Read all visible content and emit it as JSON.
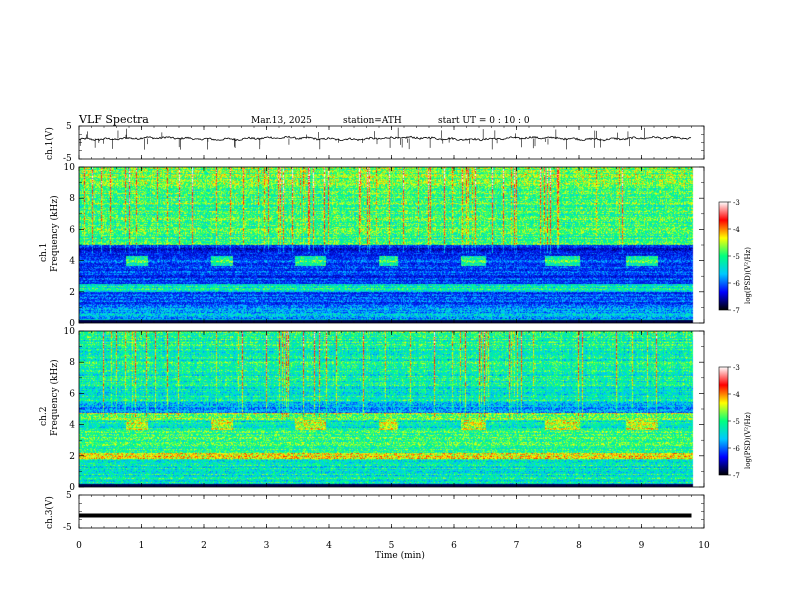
{
  "header": {
    "title": "VLF  Spectra",
    "date": "Mar.13, 2025",
    "station": "station=ATH",
    "start": "start  UT  =    0 : 10 : 0"
  },
  "chart_data": [
    {
      "type": "line",
      "panel": "ch1-waveform",
      "ylabel": "ch.1(V)",
      "ylim": [
        -5,
        5
      ],
      "yticks": [
        "5",
        "-5"
      ],
      "xlim": [
        0,
        10
      ],
      "x_unit": "min",
      "series": [
        {
          "values_description_level": 1.2,
          "noise_amplitude": 0.4,
          "spike_amplitude": 2.5
        }
      ],
      "line_color": "#000000",
      "data_end_min": 9.8
    },
    {
      "type": "heatmap",
      "panel": "ch1-spectrogram",
      "ylabel_lines": [
        "ch.1",
        "Frequency (kHz)"
      ],
      "ylim": [
        0,
        10
      ],
      "yticks": [
        "0",
        "2",
        "4",
        "6",
        "8",
        "10"
      ],
      "xlim": [
        0,
        10
      ],
      "data_end_min": 9.8,
      "colorbar": {
        "label": "log(PSD)(V²/Hz)",
        "range": [
          -7,
          -3
        ],
        "ticks": [
          "-3",
          "-4",
          "-5",
          "-6",
          "-7"
        ],
        "colors": [
          "#000000",
          "#0000ff",
          "#00c8ff",
          "#00ff7f",
          "#ffff00",
          "#ff0000",
          "#ffffff"
        ]
      },
      "features": {
        "transmitter_pulses": {
          "freq_range_khz": [
            3.7,
            4.3
          ],
          "start_min": [
            0.75,
            2.1,
            3.45,
            4.8,
            6.1,
            7.45,
            8.75
          ],
          "end_min": [
            1.1,
            2.45,
            3.95,
            5.1,
            6.5,
            8.0,
            9.25
          ]
        }
      }
    },
    {
      "type": "heatmap",
      "panel": "ch2-spectrogram",
      "ylabel_lines": [
        "ch.2",
        "Frequency (kHz)"
      ],
      "ylim": [
        0,
        10
      ],
      "yticks": [
        "0",
        "2",
        "4",
        "6",
        "8",
        "10"
      ],
      "xlim": [
        0,
        10
      ],
      "data_end_min": 9.8,
      "colorbar": {
        "label": "log(PSD)(V²/Hz)",
        "range": [
          -7,
          -3
        ],
        "ticks": [
          "-3",
          "-4",
          "-5",
          "-6",
          "-7"
        ],
        "colors": [
          "#000000",
          "#0000ff",
          "#00c8ff",
          "#00ff7f",
          "#ffff00",
          "#ff0000",
          "#ffffff"
        ]
      },
      "features": {
        "transmitter_pulses": {
          "freq_range_khz": [
            3.7,
            4.3
          ],
          "start_min": [
            0.75,
            2.1,
            3.45,
            4.8,
            6.1,
            7.45,
            8.75
          ],
          "end_min": [
            1.1,
            2.45,
            3.95,
            5.1,
            6.5,
            8.0,
            9.25
          ]
        }
      }
    },
    {
      "type": "line",
      "panel": "ch3-waveform",
      "ylabel": "ch.3(V)",
      "ylim": [
        -5,
        5
      ],
      "yticks": [
        "5",
        "-5"
      ],
      "xlim": [
        0,
        10
      ],
      "series": [
        {
          "constant_value": -1.2
        }
      ],
      "line_color": "#000000",
      "data_end_min": 9.8
    }
  ],
  "x_axis": {
    "label": "Time  (min)",
    "ticks": [
      "0",
      "1",
      "2",
      "3",
      "4",
      "5",
      "6",
      "7",
      "8",
      "9",
      "10"
    ]
  }
}
